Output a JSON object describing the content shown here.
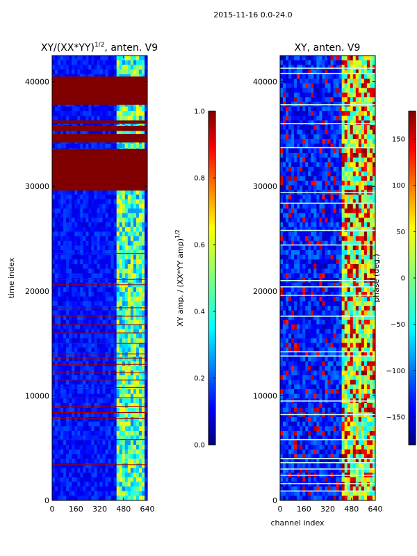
{
  "figure": {
    "suptitle": "2015-11-16 0.0-24.0"
  },
  "chart_data": [
    {
      "type": "heatmap",
      "title": "XY/(XX*YY)",
      "title_sup": "1/2",
      "title_suffix": ", anten. V9",
      "xlabel": "",
      "ylabel": "time index",
      "xlim": [
        0,
        640
      ],
      "ylim": [
        0,
        42500
      ],
      "xticks": [
        0,
        160,
        320,
        480,
        640
      ],
      "yticks": [
        0,
        10000,
        20000,
        30000,
        40000
      ],
      "xtick_labels": [
        "0",
        "160",
        "320",
        "480",
        "640"
      ],
      "ytick_labels": [
        "0",
        "10000",
        "20000",
        "30000",
        "40000"
      ],
      "colormap": "jet",
      "background_color": "#0028c8",
      "bright_channel_range": [
        420,
        620
      ],
      "saturated_bands": [
        [
          29600,
          33600
        ],
        [
          34200,
          35000
        ],
        [
          35300,
          35800
        ],
        [
          36000,
          36300
        ],
        [
          37800,
          40500
        ]
      ],
      "flag_lines": [
        3400,
        5800,
        7800,
        8400,
        9000,
        9800,
        10800,
        11500,
        12200,
        13000,
        13600,
        14000,
        15000,
        16000,
        16800,
        17600,
        18400,
        20600,
        21100,
        23600
      ],
      "colorbar": {
        "min": 0.0,
        "max": 1.0,
        "ticks": [
          0.0,
          0.2,
          0.4,
          0.6,
          0.8,
          1.0
        ],
        "tick_labels": [
          "0.0",
          "0.2",
          "0.4",
          "0.6",
          "0.8",
          "1.0"
        ],
        "label": "XY amp. / (XX*YY amp)",
        "label_sup": "1/2"
      }
    },
    {
      "type": "heatmap",
      "title": "XY, anten. V9",
      "xlabel": "channel index",
      "ylabel": "",
      "xlim": [
        0,
        640
      ],
      "ylim": [
        0,
        42500
      ],
      "xticks": [
        0,
        160,
        320,
        480,
        640
      ],
      "yticks": [
        0,
        10000,
        20000,
        30000,
        40000
      ],
      "xtick_labels": [
        "0",
        "160",
        "320",
        "480",
        "640"
      ],
      "ytick_labels": [
        "0",
        "10000",
        "20000",
        "30000",
        "40000"
      ],
      "colormap": "jet",
      "background_color": "#002090",
      "bright_channel_range": [
        400,
        640
      ],
      "flag_lines": [
        900,
        1600,
        2400,
        3000,
        3600,
        4000,
        5800,
        8200,
        9500,
        13800,
        14200,
        17600,
        19600,
        20400,
        21000,
        24400,
        25800,
        28400,
        29400,
        33700,
        36000,
        37800,
        40800,
        41300
      ],
      "colorbar": {
        "min": -180,
        "max": 180,
        "ticks": [
          -150,
          -100,
          -50,
          0,
          50,
          100,
          150
        ],
        "tick_labels": [
          "−150",
          "−100",
          "−50",
          "0",
          "50",
          "100",
          "150"
        ],
        "label": "phase (deg.)"
      }
    }
  ]
}
